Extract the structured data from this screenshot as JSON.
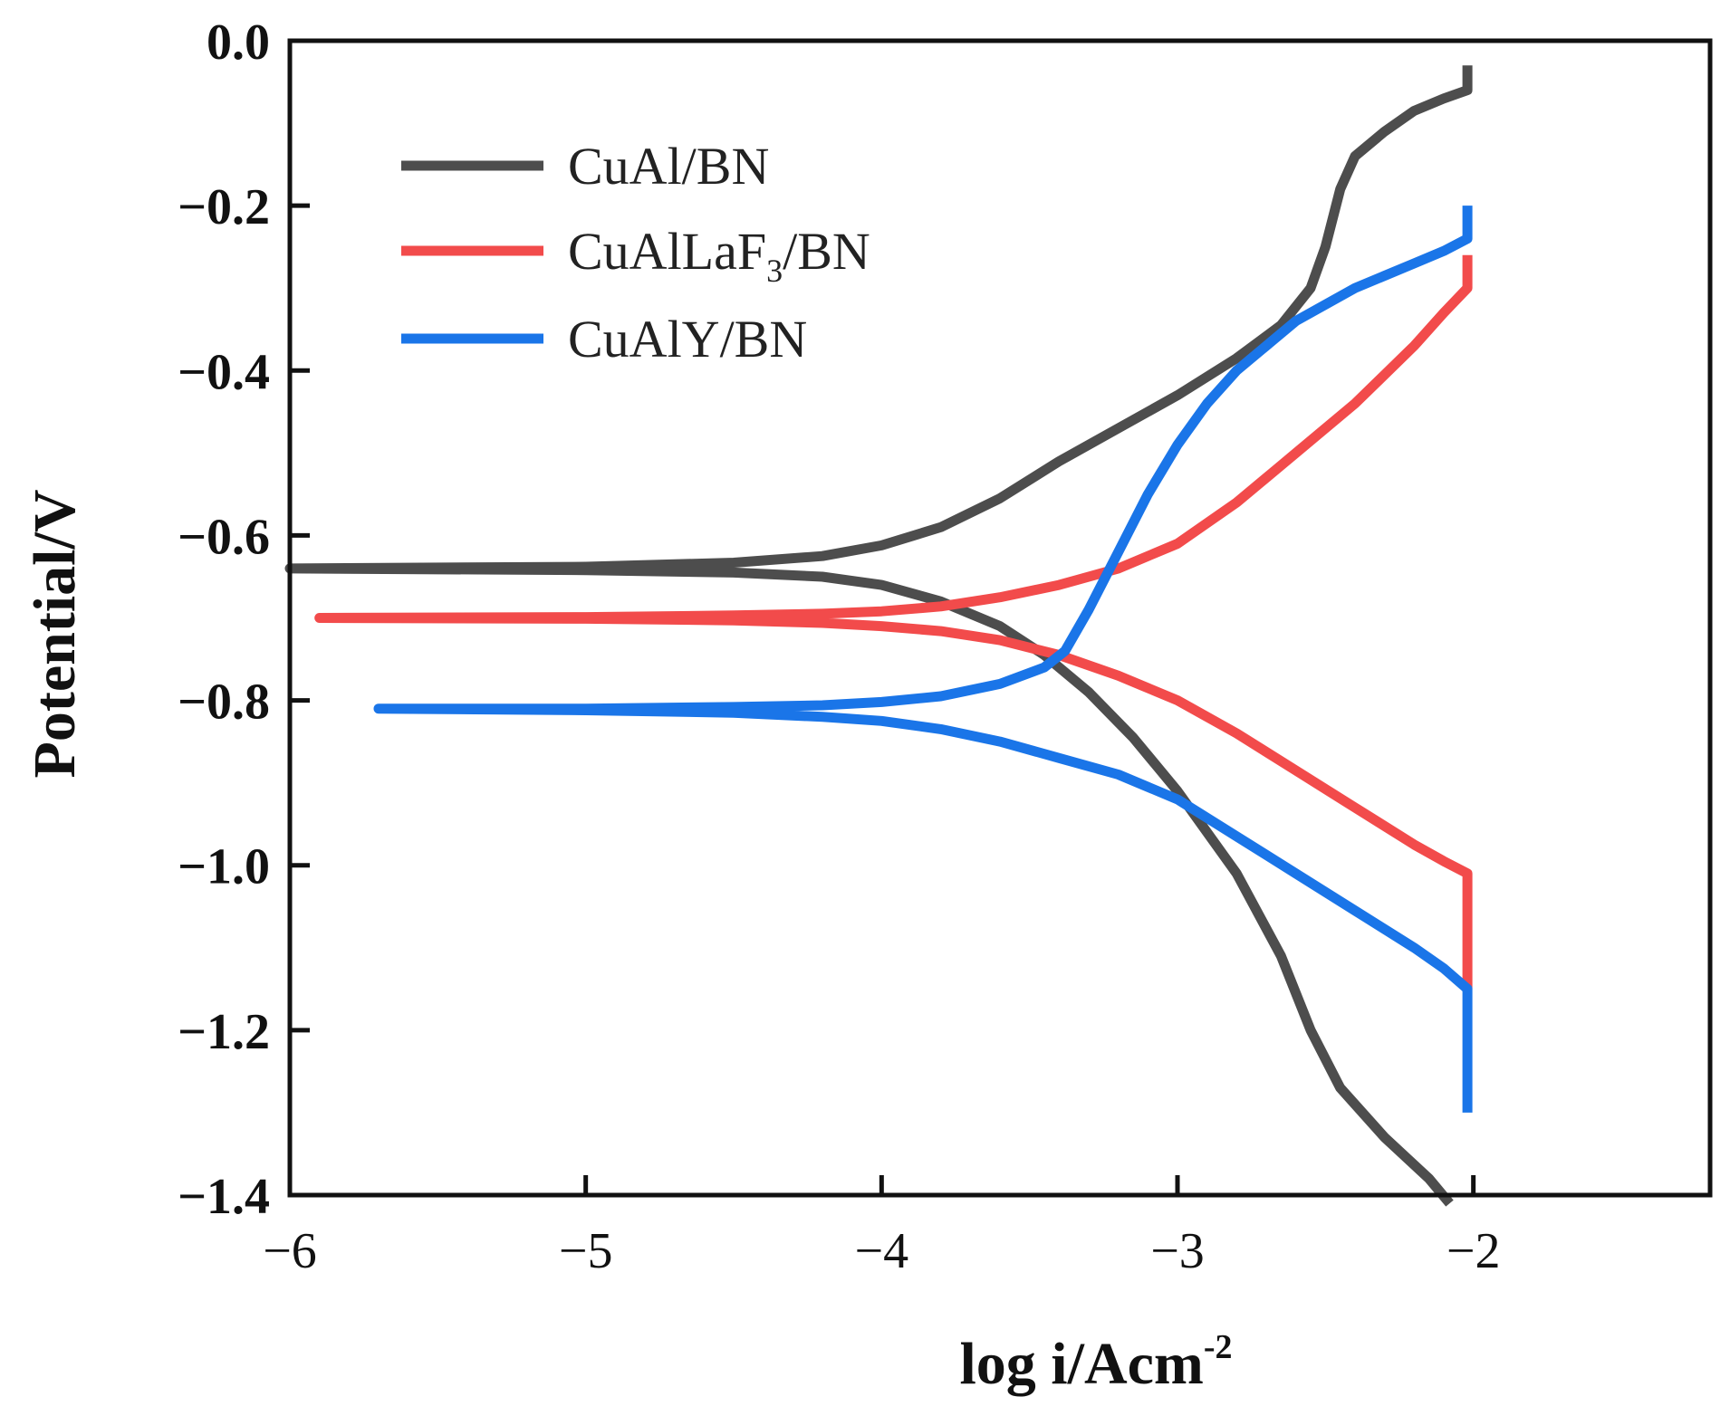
{
  "chart_data": {
    "type": "line",
    "title": "",
    "xlabel": "log i/Acm",
    "xlabel_superscript": "-2",
    "ylabel": "Potential/V",
    "xlim": [
      -6,
      -1.2
    ],
    "ylim": [
      -1.4,
      0.0
    ],
    "x_ticks": [
      -6,
      -5,
      -4,
      -3,
      -2
    ],
    "x_tick_labels": [
      "−6",
      "−5",
      "−4",
      "−3",
      "−2"
    ],
    "y_ticks": [
      0.0,
      -0.2,
      -0.4,
      -0.6,
      -0.8,
      -1.0,
      -1.2,
      -1.4
    ],
    "y_tick_labels": [
      "0.0",
      "−0.2",
      "−0.4",
      "−0.6",
      "−0.8",
      "−1.0",
      "−1.2",
      "−1.4"
    ],
    "grid": false,
    "legend_position": "top-left",
    "series": [
      {
        "name": "CuAl/BN",
        "legend_main": "CuAl/BN",
        "legend_sub": "",
        "legend_tail": "",
        "color": "#4d4d4d",
        "anodic": [
          [
            -6.0,
            -0.64
          ],
          [
            -5.0,
            -0.638
          ],
          [
            -4.5,
            -0.633
          ],
          [
            -4.2,
            -0.625
          ],
          [
            -4.0,
            -0.612
          ],
          [
            -3.8,
            -0.59
          ],
          [
            -3.6,
            -0.555
          ],
          [
            -3.4,
            -0.51
          ],
          [
            -3.2,
            -0.47
          ],
          [
            -3.0,
            -0.43
          ],
          [
            -2.8,
            -0.385
          ],
          [
            -2.65,
            -0.345
          ],
          [
            -2.55,
            -0.3
          ],
          [
            -2.5,
            -0.25
          ],
          [
            -2.45,
            -0.18
          ],
          [
            -2.4,
            -0.14
          ],
          [
            -2.3,
            -0.11
          ],
          [
            -2.2,
            -0.085
          ],
          [
            -2.1,
            -0.07
          ],
          [
            -2.02,
            -0.06
          ],
          [
            -2.02,
            -0.03
          ]
        ],
        "cathodic": [
          [
            -6.0,
            -0.64
          ],
          [
            -5.0,
            -0.642
          ],
          [
            -4.5,
            -0.645
          ],
          [
            -4.2,
            -0.65
          ],
          [
            -4.0,
            -0.66
          ],
          [
            -3.8,
            -0.68
          ],
          [
            -3.6,
            -0.71
          ],
          [
            -3.45,
            -0.745
          ],
          [
            -3.3,
            -0.79
          ],
          [
            -3.15,
            -0.845
          ],
          [
            -3.0,
            -0.91
          ],
          [
            -2.8,
            -1.01
          ],
          [
            -2.65,
            -1.11
          ],
          [
            -2.55,
            -1.2
          ],
          [
            -2.45,
            -1.27
          ],
          [
            -2.3,
            -1.33
          ],
          [
            -2.15,
            -1.38
          ],
          [
            -2.08,
            -1.41
          ]
        ]
      },
      {
        "name": "CuAlLaF3/BN",
        "legend_main": "CuAlLaF",
        "legend_sub": "3",
        "legend_tail": "/BN",
        "color": "#f24b4b",
        "anodic": [
          [
            -5.9,
            -0.7
          ],
          [
            -5.0,
            -0.699
          ],
          [
            -4.5,
            -0.697
          ],
          [
            -4.2,
            -0.695
          ],
          [
            -4.0,
            -0.692
          ],
          [
            -3.8,
            -0.686
          ],
          [
            -3.6,
            -0.675
          ],
          [
            -3.4,
            -0.66
          ],
          [
            -3.2,
            -0.64
          ],
          [
            -3.0,
            -0.61
          ],
          [
            -2.8,
            -0.56
          ],
          [
            -2.6,
            -0.5
          ],
          [
            -2.4,
            -0.44
          ],
          [
            -2.2,
            -0.37
          ],
          [
            -2.1,
            -0.33
          ],
          [
            -2.02,
            -0.3
          ],
          [
            -2.02,
            -0.26
          ]
        ],
        "cathodic": [
          [
            -5.9,
            -0.7
          ],
          [
            -5.0,
            -0.701
          ],
          [
            -4.5,
            -0.703
          ],
          [
            -4.2,
            -0.706
          ],
          [
            -4.0,
            -0.71
          ],
          [
            -3.8,
            -0.716
          ],
          [
            -3.6,
            -0.727
          ],
          [
            -3.4,
            -0.745
          ],
          [
            -3.2,
            -0.77
          ],
          [
            -3.0,
            -0.8
          ],
          [
            -2.8,
            -0.84
          ],
          [
            -2.6,
            -0.885
          ],
          [
            -2.4,
            -0.93
          ],
          [
            -2.2,
            -0.975
          ],
          [
            -2.1,
            -0.995
          ],
          [
            -2.02,
            -1.01
          ],
          [
            -2.02,
            -1.15
          ]
        ]
      },
      {
        "name": "CuAlY/BN",
        "legend_main": "CuAlY/BN",
        "legend_sub": "",
        "legend_tail": "",
        "color": "#1a75e8",
        "anodic": [
          [
            -5.7,
            -0.81
          ],
          [
            -5.0,
            -0.81
          ],
          [
            -4.5,
            -0.808
          ],
          [
            -4.2,
            -0.806
          ],
          [
            -4.0,
            -0.802
          ],
          [
            -3.8,
            -0.795
          ],
          [
            -3.6,
            -0.78
          ],
          [
            -3.45,
            -0.76
          ],
          [
            -3.38,
            -0.74
          ],
          [
            -3.3,
            -0.69
          ],
          [
            -3.2,
            -0.62
          ],
          [
            -3.1,
            -0.55
          ],
          [
            -3.0,
            -0.49
          ],
          [
            -2.9,
            -0.44
          ],
          [
            -2.8,
            -0.4
          ],
          [
            -2.7,
            -0.37
          ],
          [
            -2.6,
            -0.34
          ],
          [
            -2.4,
            -0.3
          ],
          [
            -2.2,
            -0.27
          ],
          [
            -2.1,
            -0.255
          ],
          [
            -2.02,
            -0.24
          ],
          [
            -2.02,
            -0.2
          ]
        ],
        "cathodic": [
          [
            -5.7,
            -0.81
          ],
          [
            -5.0,
            -0.812
          ],
          [
            -4.5,
            -0.815
          ],
          [
            -4.2,
            -0.82
          ],
          [
            -4.0,
            -0.825
          ],
          [
            -3.8,
            -0.835
          ],
          [
            -3.6,
            -0.85
          ],
          [
            -3.4,
            -0.87
          ],
          [
            -3.2,
            -0.89
          ],
          [
            -3.0,
            -0.92
          ],
          [
            -2.8,
            -0.965
          ],
          [
            -2.6,
            -1.01
          ],
          [
            -2.4,
            -1.055
          ],
          [
            -2.2,
            -1.1
          ],
          [
            -2.1,
            -1.125
          ],
          [
            -2.02,
            -1.15
          ],
          [
            -2.02,
            -1.3
          ]
        ]
      }
    ]
  }
}
